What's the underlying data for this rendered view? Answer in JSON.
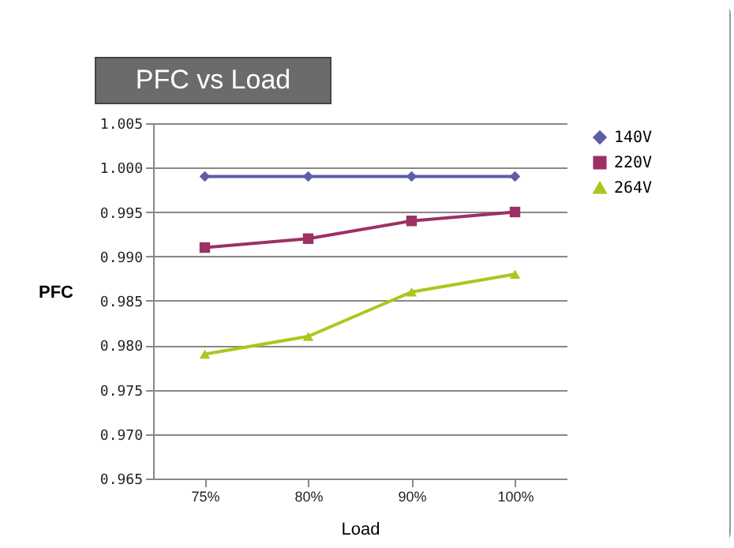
{
  "chart_data": {
    "type": "line",
    "title": "PFC vs Load",
    "xlabel": "Load",
    "ylabel": "PFC",
    "categories": [
      "75%",
      "80%",
      "90%",
      "100%"
    ],
    "series": [
      {
        "name": "140V",
        "color": "#5c5fa6",
        "marker": "diamond",
        "values": [
          0.999,
          0.999,
          0.999,
          0.999
        ]
      },
      {
        "name": "220V",
        "color": "#9b3164",
        "marker": "square",
        "values": [
          0.991,
          0.992,
          0.994,
          0.995
        ]
      },
      {
        "name": "264V",
        "color": "#a8c81e",
        "marker": "triangle",
        "values": [
          0.979,
          0.981,
          0.986,
          0.988
        ]
      }
    ],
    "ylim": [
      0.965,
      1.005
    ],
    "yticks": [
      0.965,
      {
        "value": 0.97,
        "label": "0.970"
      },
      0.975,
      {
        "value": 0.98,
        "label": "0.980"
      },
      0.985,
      {
        "value": 0.99,
        "label": "0.990"
      },
      0.995,
      {
        "value": 1.0,
        "label": "1.000"
      },
      1.005
    ],
    "grid": "y",
    "legend": "right",
    "line_style": "solid"
  }
}
